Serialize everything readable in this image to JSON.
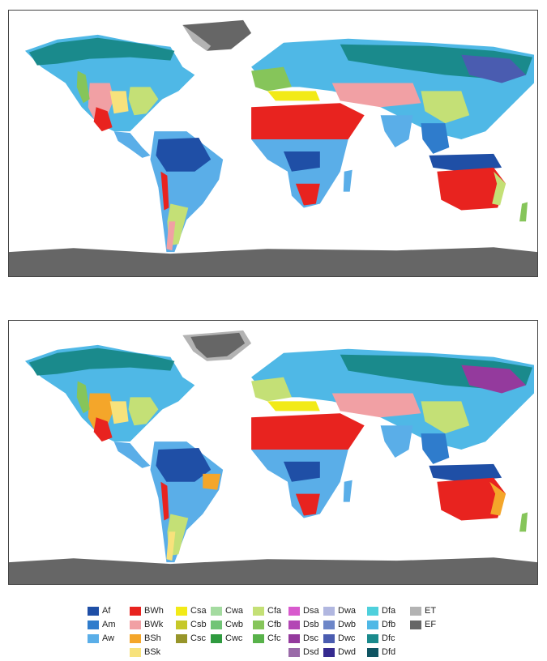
{
  "maps": [
    {
      "name": "koppen-map-top"
    },
    {
      "name": "koppen-map-bottom"
    }
  ],
  "legend": {
    "columns": [
      [
        {
          "code": "Af",
          "color": "#1f4fa6"
        },
        {
          "code": "Am",
          "color": "#2f7ccc"
        },
        {
          "code": "Aw",
          "color": "#5aaee8"
        }
      ],
      [
        {
          "code": "BWh",
          "color": "#e8231f"
        },
        {
          "code": "BWk",
          "color": "#f1a0a4"
        },
        {
          "code": "BSh",
          "color": "#f4a62a"
        },
        {
          "code": "BSk",
          "color": "#f7e27c"
        }
      ],
      [
        {
          "code": "Csa",
          "color": "#f2ea18"
        },
        {
          "code": "Csb",
          "color": "#c6c829"
        },
        {
          "code": "Csc",
          "color": "#97952a"
        }
      ],
      [
        {
          "code": "Cwa",
          "color": "#a4dba0"
        },
        {
          "code": "Cwb",
          "color": "#72c476"
        },
        {
          "code": "Cwc",
          "color": "#2f9a3f"
        }
      ],
      [
        {
          "code": "Cfa",
          "color": "#c4e076"
        },
        {
          "code": "Cfb",
          "color": "#86c55a"
        },
        {
          "code": "Cfc",
          "color": "#58b24a"
        }
      ],
      [
        {
          "code": "Dsa",
          "color": "#d85acd"
        },
        {
          "code": "Dsb",
          "color": "#b347b5"
        },
        {
          "code": "Dsc",
          "color": "#943a9d"
        },
        {
          "code": "Dsd",
          "color": "#9a6aa8"
        }
      ],
      [
        {
          "code": "Dwa",
          "color": "#b1b7e0"
        },
        {
          "code": "Dwb",
          "color": "#6d86c8"
        },
        {
          "code": "Dwc",
          "color": "#4a5cb0"
        },
        {
          "code": "Dwd",
          "color": "#352a8f"
        }
      ],
      [
        {
          "code": "Dfa",
          "color": "#4fd0dc"
        },
        {
          "code": "Dfb",
          "color": "#4fb8e6"
        },
        {
          "code": "Dfc",
          "color": "#1a8a8c"
        },
        {
          "code": "Dfd",
          "color": "#0f5462"
        }
      ],
      [
        {
          "code": "ET",
          "color": "#b3b3b3"
        },
        {
          "code": "EF",
          "color": "#666666"
        }
      ]
    ]
  }
}
